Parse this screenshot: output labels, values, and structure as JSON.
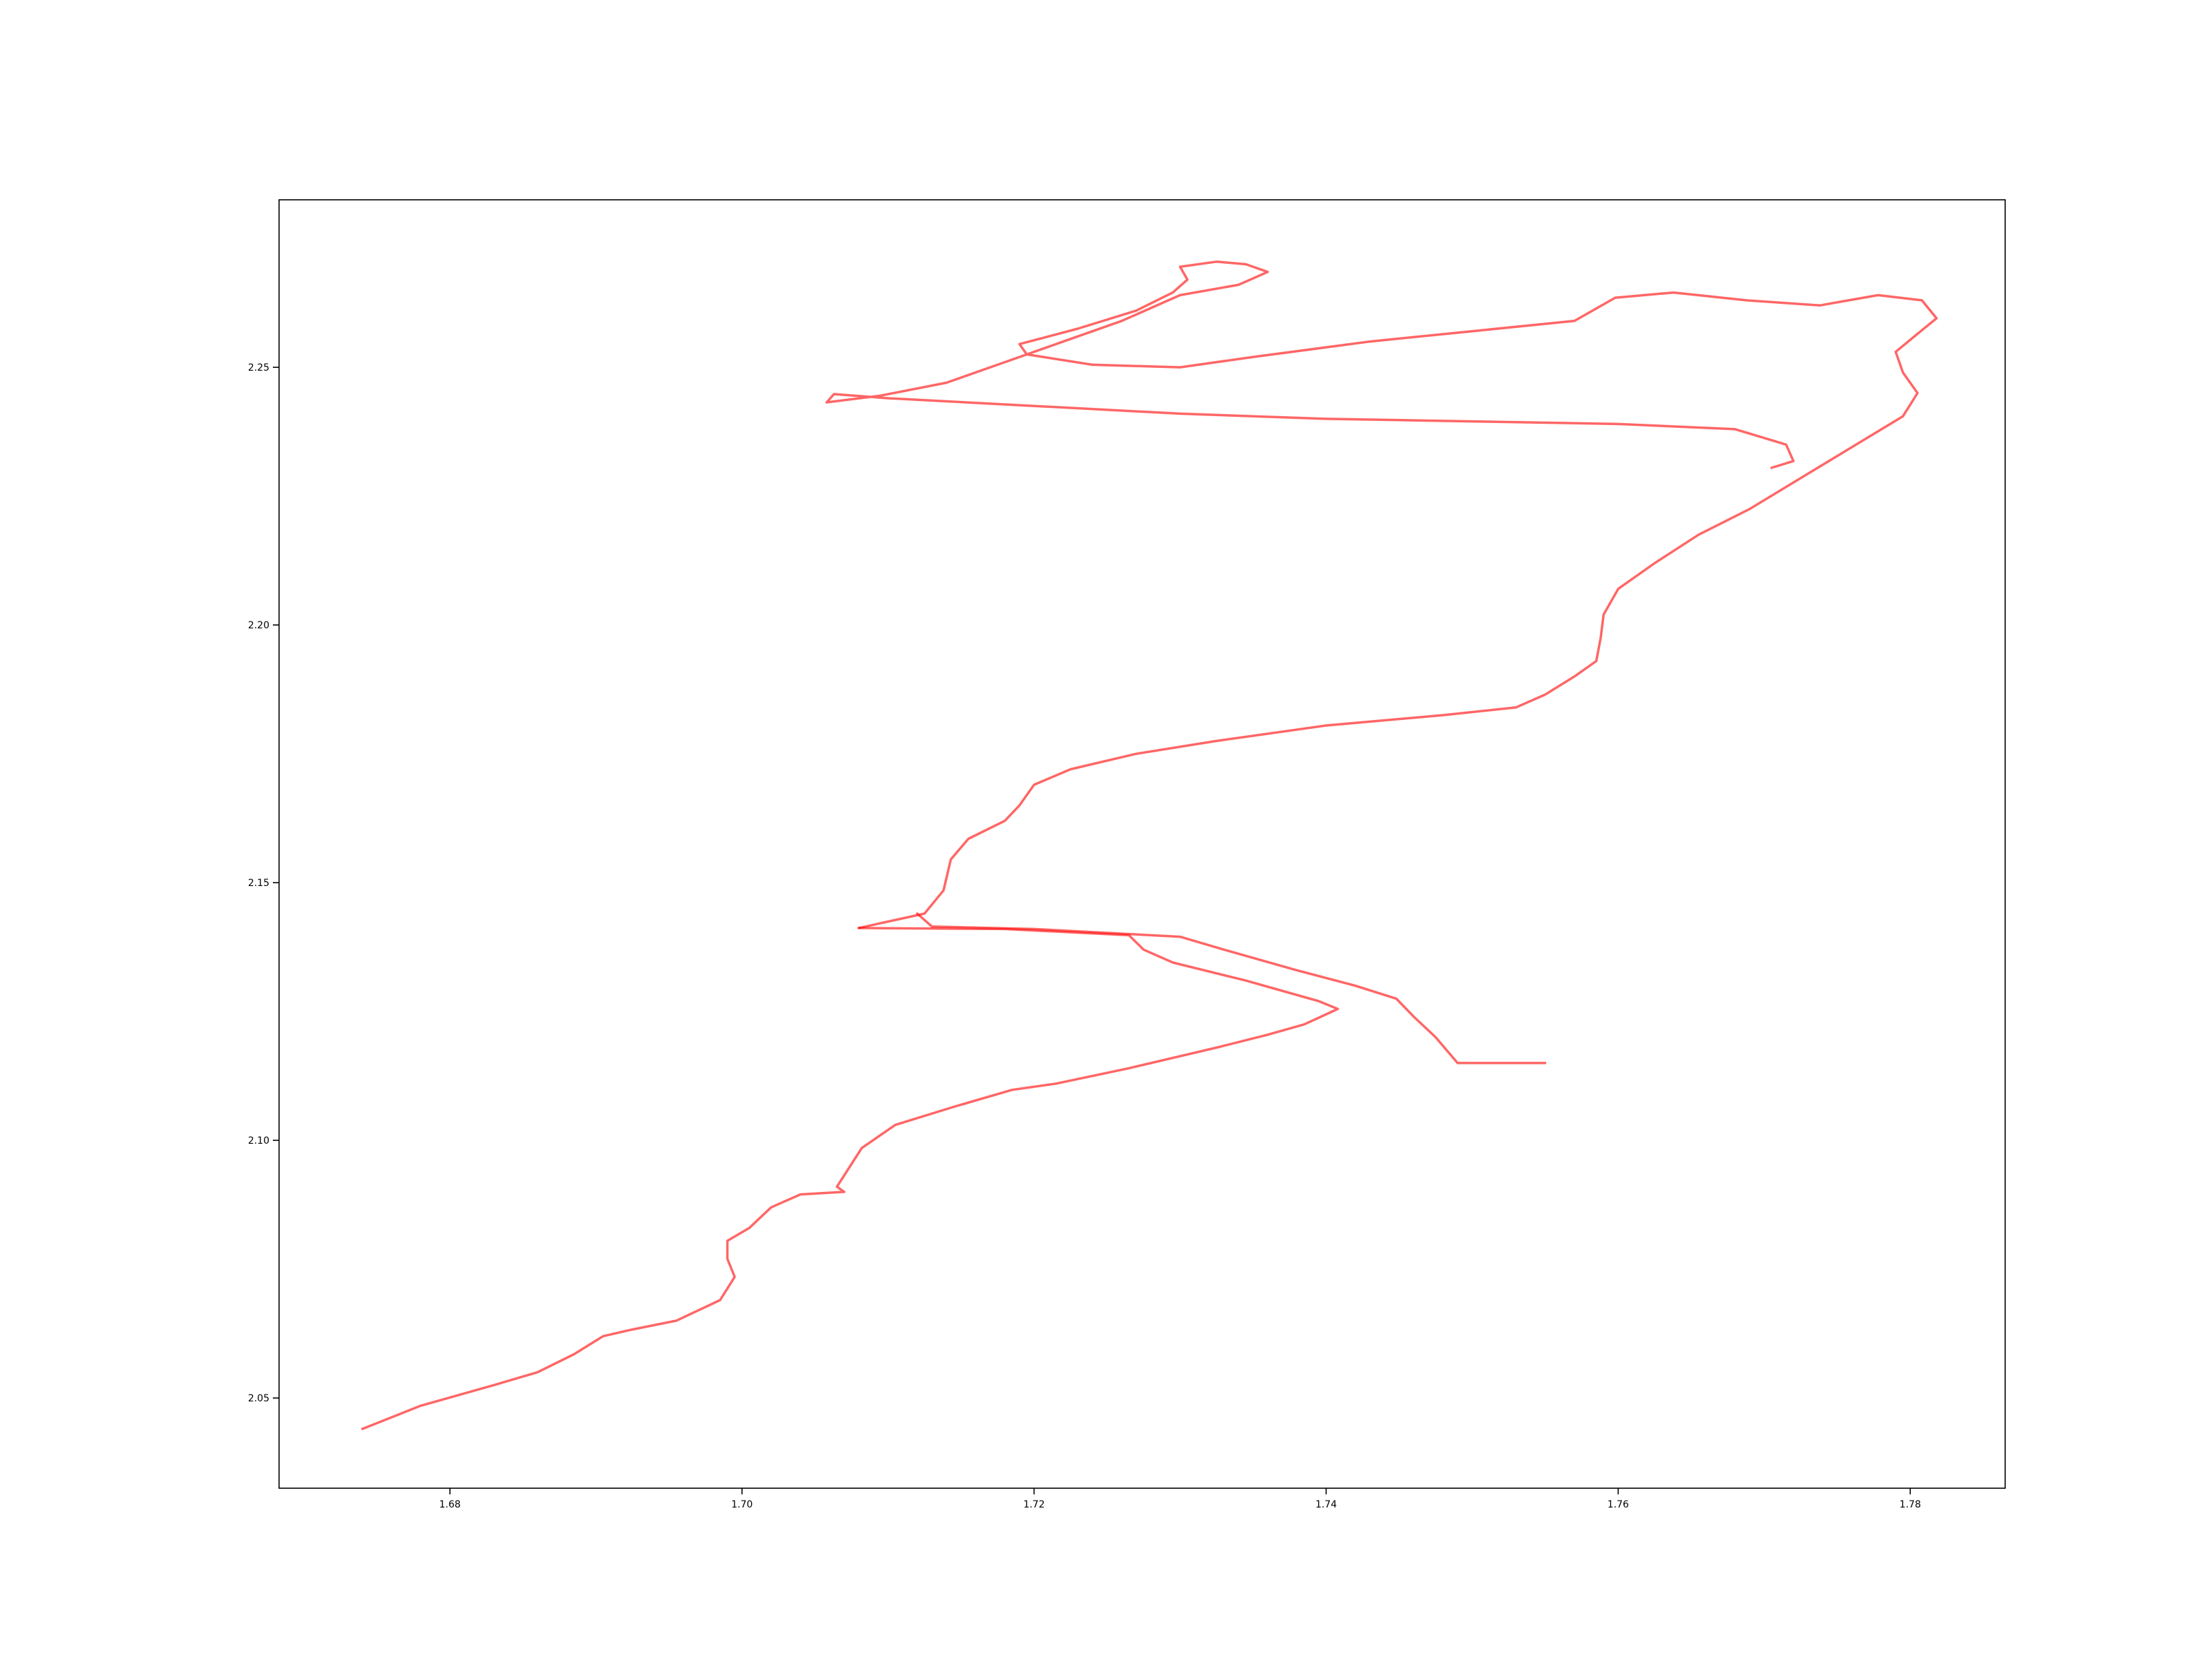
{
  "chart_data": {
    "type": "line",
    "title": "",
    "xlabel": "",
    "ylabel": "",
    "xlim": [
      1.6683,
      1.7865
    ],
    "ylim": [
      2.0325,
      2.2825
    ],
    "xticks": [
      "1.68",
      "1.70",
      "1.72",
      "1.74",
      "1.76",
      "1.78"
    ],
    "yticks": [
      "2.05",
      "2.10",
      "2.15",
      "2.20",
      "2.25"
    ],
    "grid": false,
    "legend": "none",
    "line_color": "#ff0000",
    "series": [
      {
        "points": [
          [
            1.674,
            2.044
          ],
          [
            1.678,
            2.0485
          ],
          [
            1.683,
            2.0525
          ],
          [
            1.686,
            2.055
          ],
          [
            1.6885,
            2.0585
          ],
          [
            1.6905,
            2.062
          ],
          [
            1.6925,
            2.0633
          ],
          [
            1.6955,
            2.065
          ],
          [
            1.6985,
            2.069
          ],
          [
            1.6995,
            2.0735
          ],
          [
            1.699,
            2.077
          ],
          [
            1.699,
            2.0805
          ],
          [
            1.7005,
            2.083
          ],
          [
            1.702,
            2.087
          ],
          [
            1.704,
            2.0895
          ],
          [
            1.707,
            2.09
          ],
          [
            1.7065,
            2.091
          ],
          [
            1.7082,
            2.0985
          ],
          [
            1.7105,
            2.103
          ],
          [
            1.7145,
            2.1065
          ],
          [
            1.7185,
            2.1098
          ],
          [
            1.7215,
            2.111
          ],
          [
            1.7265,
            2.114
          ],
          [
            1.7325,
            2.118
          ],
          [
            1.736,
            2.1205
          ],
          [
            1.7385,
            2.1225
          ],
          [
            1.7408,
            2.1255
          ],
          [
            1.7395,
            2.127
          ],
          [
            1.7345,
            2.131
          ],
          [
            1.7295,
            2.1345
          ],
          [
            1.7275,
            2.137
          ],
          [
            1.7265,
            2.1398
          ],
          [
            1.718,
            2.141
          ],
          [
            1.708,
            2.1412
          ]
        ]
      },
      {
        "points": [
          [
            1.708,
            2.1412
          ],
          [
            1.7125,
            2.144
          ],
          [
            1.7138,
            2.1485
          ],
          [
            1.7143,
            2.1545
          ],
          [
            1.7155,
            2.1585
          ],
          [
            1.718,
            2.162
          ],
          [
            1.719,
            2.165
          ],
          [
            1.72,
            2.169
          ],
          [
            1.7225,
            2.172
          ],
          [
            1.727,
            2.175
          ],
          [
            1.7325,
            2.1775
          ],
          [
            1.74,
            2.1805
          ],
          [
            1.748,
            2.1825
          ],
          [
            1.753,
            2.184
          ],
          [
            1.755,
            2.1865
          ],
          [
            1.757,
            2.19
          ],
          [
            1.7585,
            2.193
          ],
          [
            1.7588,
            2.1975
          ],
          [
            1.759,
            2.202
          ],
          [
            1.76,
            2.207
          ],
          [
            1.7625,
            2.212
          ],
          [
            1.7655,
            2.2175
          ],
          [
            1.769,
            2.2225
          ],
          [
            1.7725,
            2.2285
          ],
          [
            1.776,
            2.2345
          ],
          [
            1.7795,
            2.2405
          ],
          [
            1.7805,
            2.245
          ],
          [
            1.7795,
            2.249
          ],
          [
            1.779,
            2.253
          ],
          [
            1.7805,
            2.2565
          ],
          [
            1.7818,
            2.2595
          ],
          [
            1.7808,
            2.263
          ],
          [
            1.7778,
            2.264
          ],
          [
            1.7738,
            2.262
          ],
          [
            1.7688,
            2.263
          ],
          [
            1.7638,
            2.2645
          ],
          [
            1.7598,
            2.2635
          ],
          [
            1.757,
            2.259
          ],
          [
            1.75,
            2.257
          ],
          [
            1.743,
            2.255
          ],
          [
            1.735,
            2.252
          ],
          [
            1.73,
            2.25
          ],
          [
            1.724,
            2.2505
          ],
          [
            1.7195,
            2.2525
          ],
          [
            1.719,
            2.2545
          ],
          [
            1.723,
            2.2575
          ],
          [
            1.727,
            2.261
          ],
          [
            1.7295,
            2.2645
          ],
          [
            1.7305,
            2.267
          ],
          [
            1.73,
            2.2695
          ],
          [
            1.7325,
            2.2705
          ],
          [
            1.7345,
            2.27
          ],
          [
            1.736,
            2.2685
          ],
          [
            1.734,
            2.266
          ],
          [
            1.73,
            2.264
          ],
          [
            1.726,
            2.259
          ],
          [
            1.722,
            2.255
          ],
          [
            1.718,
            2.251
          ],
          [
            1.714,
            2.247
          ],
          [
            1.7095,
            2.2445
          ],
          [
            1.7058,
            2.2432
          ],
          [
            1.7063,
            2.2448
          ],
          [
            1.71,
            2.244
          ],
          [
            1.72,
            2.2425
          ],
          [
            1.73,
            2.241
          ],
          [
            1.74,
            2.24
          ],
          [
            1.75,
            2.2395
          ],
          [
            1.76,
            2.239
          ],
          [
            1.768,
            2.238
          ],
          [
            1.7715,
            2.235
          ],
          [
            1.772,
            2.2318
          ],
          [
            1.7705,
            2.2305
          ]
        ]
      },
      {
        "points": [
          [
            1.712,
            2.144
          ],
          [
            1.713,
            2.1415
          ],
          [
            1.72,
            2.141
          ],
          [
            1.73,
            2.1395
          ],
          [
            1.733,
            2.137
          ],
          [
            1.738,
            2.133
          ],
          [
            1.742,
            2.13
          ],
          [
            1.7448,
            2.1275
          ],
          [
            1.746,
            2.124
          ],
          [
            1.7475,
            2.12
          ],
          [
            1.749,
            2.115
          ],
          [
            1.751,
            2.115
          ],
          [
            1.755,
            2.115
          ]
        ]
      }
    ]
  }
}
